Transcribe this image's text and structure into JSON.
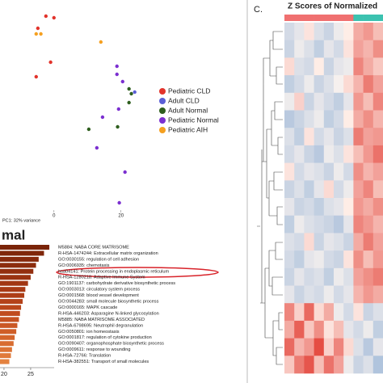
{
  "chart_data": [
    {
      "type": "scatter",
      "xlabel": "PC1: 32% variance",
      "xlim": [
        -16.1,
        56
      ],
      "ylim": [
        -26,
        26
      ],
      "xticks": [
        0,
        20
      ],
      "legend": "right",
      "series": [
        {
          "name": "Pediatric CLD",
          "color": "#e2332b",
          "x": [
            -2.4,
            0,
            -4.8,
            -1,
            -5.3
          ],
          "values": [
            22,
            21.6,
            19,
            10.6,
            7
          ]
        },
        {
          "name": "Adult CLD",
          "color": "#5b5fd6",
          "x": [
            24.1
          ],
          "values": [
            3.2
          ]
        },
        {
          "name": "Adult Normal",
          "color": "#2e5e1e",
          "x": [
            22.4,
            23.1,
            22.4,
            19,
            10.4
          ],
          "values": [
            4,
            2.8,
            0.6,
            -5.4,
            -6
          ]
        },
        {
          "name": "Pediatric Normal",
          "color": "#7b2fd0",
          "x": [
            18.8,
            18.8,
            20.5,
            19.3,
            14.5,
            12.8,
            21.2,
            19.5
          ],
          "values": [
            9.6,
            7.6,
            5.8,
            -1,
            -3,
            -10.6,
            -16.6,
            -24.2
          ]
        },
        {
          "name": "Pediatric AIH",
          "color": "#f5a020",
          "x": [
            -5.3,
            -3.9,
            14
          ],
          "values": [
            17.6,
            17.6,
            15.6
          ]
        }
      ]
    },
    {
      "type": "bar",
      "orientation": "horizontal",
      "title": "mal",
      "xlim": [
        19.25,
        29.4
      ],
      "xticks": [
        20,
        25
      ],
      "categories": [
        "M5884: NABA CORE MATRISOME",
        "R-HSA-1474244: Extracellular matrix organization",
        "GO:0030155: regulation of cell adhesion",
        "GO:0006935: chemotaxis",
        "hsa04141: Protein processing in endoplasmic reticulum",
        "R-HSA-1280218: Adaptive Immune System",
        "GO:1901137: carbohydrate derivative biosynthetic process",
        "GO:0003013: circulatory system process",
        "GO:0001568: blood vessel development",
        "GO:0044283: small molecule biosynthetic process",
        "GO:0000165: MAPK cascade",
        "R-HSA-446203: Asparagine N-linked glycosylation",
        "M5885: NABA MATRISOME ASSOCIATED",
        "R-HSA-6798695: Neutrophil degranulation",
        "GO:0050801: ion homeostasis",
        "GO:0001817: regulation of cytokine production",
        "GO:0090407: organophosphate biosynthetic process",
        "GO:0009611: response to wounding",
        "R-HSA-72766: Translation",
        "R-HSA-382551: Transport of small molecules"
      ],
      "values": [
        28.5,
        27.5,
        26.5,
        26,
        25.5,
        25,
        24.5,
        24,
        23.8,
        23.5,
        23.2,
        23,
        22.8,
        22.5,
        22.3,
        22,
        21.8,
        21.5,
        21.3,
        21
      ],
      "colors": [
        "#7a2408",
        "#7f270a",
        "#86290c",
        "#8c2c0d",
        "#932f0f",
        "#9a3311",
        "#a13613",
        "#a83a15",
        "#ae3e17",
        "#b4421a",
        "#ba471c",
        "#c04c1f",
        "#c55222",
        "#ca5825",
        "#cf5e28",
        "#d4652c",
        "#d86c30",
        "#dc7335",
        "#e07a3a",
        "#e4823f"
      ]
    },
    {
      "type": "heatmap",
      "panel_label": "C.",
      "title": "Z Scores of Normalized",
      "low_color": "#4f86c6",
      "high_color": "#e23a30",
      "column_colors": [
        "#f07070",
        "#f07070",
        "#f07070",
        "#f07070",
        "#f07070",
        "#f07070",
        "#f07070",
        "#3cc2b0",
        "#3cc2b0",
        "#3cc2b0"
      ],
      "values": [
        [
          -0.5,
          -0.3,
          0.2,
          -0.4,
          -0.6,
          -0.2,
          0.1,
          0.8,
          1.0,
          0.6
        ],
        [
          -0.6,
          -0.2,
          -0.4,
          -0.7,
          -0.3,
          -0.5,
          0.2,
          0.9,
          0.7,
          1.1
        ],
        [
          0.3,
          -0.4,
          -0.5,
          0.1,
          -0.6,
          -0.3,
          -0.2,
          1.2,
          0.8,
          0.5
        ],
        [
          -0.7,
          -0.5,
          -0.2,
          -0.6,
          -0.4,
          -0.1,
          0.3,
          0.7,
          1.3,
          0.9
        ],
        [
          -0.2,
          0.4,
          -0.6,
          -0.3,
          -0.5,
          -0.7,
          -0.3,
          1.0,
          0.6,
          1.2
        ],
        [
          -0.8,
          -0.6,
          -0.4,
          -0.2,
          -0.7,
          -0.5,
          0.1,
          0.8,
          1.1,
          0.7
        ],
        [
          -0.4,
          -0.7,
          0.2,
          -0.5,
          -0.3,
          -0.6,
          -0.4,
          1.3,
          0.9,
          1.0
        ],
        [
          -0.5,
          -0.3,
          -0.6,
          -0.8,
          -0.2,
          -0.4,
          0.2,
          0.6,
          1.0,
          1.4
        ],
        [
          0.2,
          -0.5,
          -0.3,
          -0.4,
          -0.6,
          -0.2,
          -0.5,
          1.1,
          0.7,
          0.9
        ],
        [
          -0.6,
          -0.4,
          -0.7,
          -0.3,
          0.3,
          -0.5,
          -0.2,
          0.9,
          1.2,
          0.6
        ],
        [
          -0.3,
          -0.6,
          -0.5,
          -0.7,
          -0.4,
          -0.3,
          0.1,
          1.0,
          0.8,
          1.1
        ],
        [
          -0.7,
          -0.2,
          -0.4,
          -0.5,
          -0.6,
          -0.8,
          -0.3,
          1.2,
          1.0,
          0.7
        ],
        [
          -0.4,
          -0.5,
          0.3,
          -0.6,
          -0.3,
          -0.4,
          -0.6,
          0.8,
          1.3,
          0.9
        ],
        [
          -0.5,
          -0.7,
          -0.3,
          -0.2,
          -0.5,
          -0.6,
          0.2,
          1.1,
          0.6,
          1.0
        ],
        [
          -0.6,
          -0.3,
          -0.5,
          -0.4,
          -0.7,
          -0.2,
          -0.4,
          0.9,
          1.1,
          1.3
        ],
        [
          -0.3,
          -0.6,
          -0.4,
          -0.5,
          -0.2,
          -0.5,
          -0.3,
          0.7,
          1.0,
          0.8
        ],
        [
          1.2,
          0.4,
          1.5,
          0.3,
          0.8,
          -0.2,
          -0.5,
          0.2,
          -0.6,
          -0.4
        ],
        [
          0.8,
          1.6,
          0.5,
          1.1,
          0.2,
          0.6,
          -0.3,
          -0.5,
          -0.2,
          -0.7
        ],
        [
          1.5,
          0.7,
          1.0,
          1.8,
          0.4,
          1.2,
          0.3,
          -0.4,
          -0.8,
          -0.3
        ],
        [
          0.5,
          1.3,
          1.7,
          0.6,
          1.4,
          0.9,
          -0.2,
          -0.6,
          -0.4,
          -0.9
        ]
      ]
    }
  ]
}
